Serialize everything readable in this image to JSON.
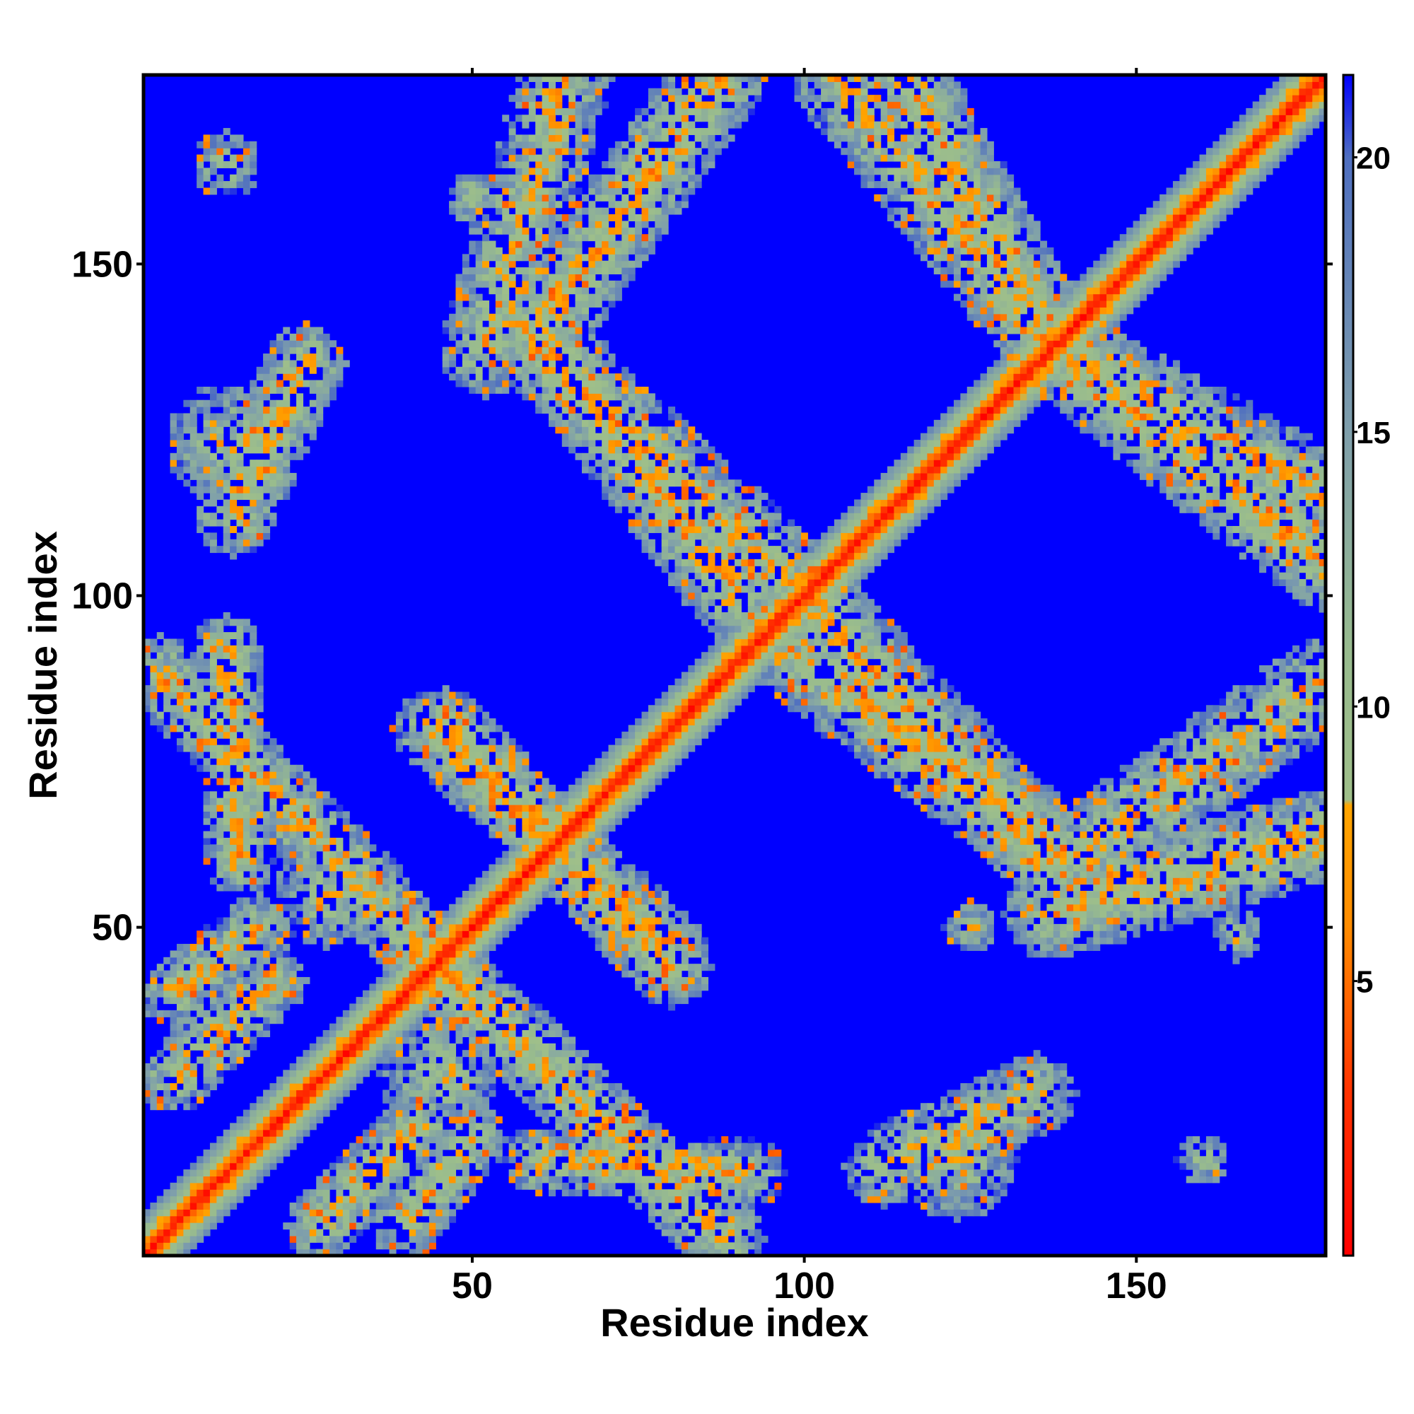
{
  "chart_data": {
    "type": "heatmap",
    "title": "",
    "xlabel": "Residue index",
    "ylabel": "Residue index",
    "n_residues": 178,
    "xlim": [
      1,
      178
    ],
    "ylim": [
      1,
      178
    ],
    "x_ticks": [
      50,
      100,
      150
    ],
    "y_ticks": [
      50,
      100,
      150
    ],
    "colorbar": {
      "min": 0,
      "max": 21.5,
      "ticks": [
        5,
        10,
        15,
        20
      ],
      "stops": [
        {
          "value": 0,
          "color": "#ff0000"
        },
        {
          "value": 3,
          "color": "#ff3300"
        },
        {
          "value": 6,
          "color": "#ff8c00"
        },
        {
          "value": 8.2,
          "color": "#ffa500"
        },
        {
          "value": 8.3,
          "color": "#9fbf8a"
        },
        {
          "value": 11,
          "color": "#98bb8e"
        },
        {
          "value": 15,
          "color": "#7f9fab"
        },
        {
          "value": 20,
          "color": "#4f6fc0"
        },
        {
          "value": 21.5,
          "color": "#0000ff"
        }
      ]
    },
    "cutoff": 21,
    "background_color": "#0000ff",
    "diagonal_band": {
      "width": 6
    },
    "contact_bands": [
      {
        "from": [
          3,
          88
        ],
        "to": [
          47,
          42
        ],
        "width": 6
      },
      {
        "from": [
          20,
          42
        ],
        "to": [
          5,
          27
        ],
        "width": 5
      },
      {
        "from": [
          18,
          50
        ],
        "to": [
          5,
          40
        ],
        "width": 5
      },
      {
        "from": [
          64,
          178
        ],
        "to": [
          52,
          137
        ],
        "width": 7
      },
      {
        "from": [
          60,
          137
        ],
        "to": [
          100,
          100
        ],
        "width": 7
      },
      {
        "from": [
          105,
          178
        ],
        "to": [
          138,
          137
        ],
        "width": 7
      },
      {
        "from": [
          138,
          137
        ],
        "to": [
          178,
          115
        ],
        "width": 7
      },
      {
        "from": [
          100,
          90
        ],
        "to": [
          140,
          60
        ],
        "width": 7
      },
      {
        "from": [
          140,
          60
        ],
        "to": [
          178,
          87
        ],
        "width": 7
      },
      {
        "from": [
          44,
          80
        ],
        "to": [
          80,
          46
        ],
        "width": 6
      },
      {
        "from": [
          60,
          15
        ],
        "to": [
          92,
          13
        ],
        "width": 5
      },
      {
        "from": [
          112,
          14
        ],
        "to": [
          135,
          25
        ],
        "width": 6
      }
    ],
    "contact_blobs": [
      {
        "center": [
          13,
          123
        ],
        "radius": 9
      },
      {
        "center": [
          12,
          80
        ],
        "radius": 7
      },
      {
        "center": [
          28,
          55
        ],
        "radius": 8
      },
      {
        "center": [
          45,
          28
        ],
        "radius": 9
      },
      {
        "center": [
          123,
          15
        ],
        "radius": 9
      },
      {
        "center": [
          155,
          68
        ],
        "radius": 6
      },
      {
        "center": [
          13,
          165
        ],
        "radius": 5
      },
      {
        "center": [
          50,
          160
        ],
        "radius": 4
      },
      {
        "center": [
          125,
          50
        ],
        "radius": 4
      },
      {
        "center": [
          165,
          49
        ],
        "radius": 4
      },
      {
        "center": [
          160,
          15
        ],
        "radius": 4
      }
    ]
  }
}
